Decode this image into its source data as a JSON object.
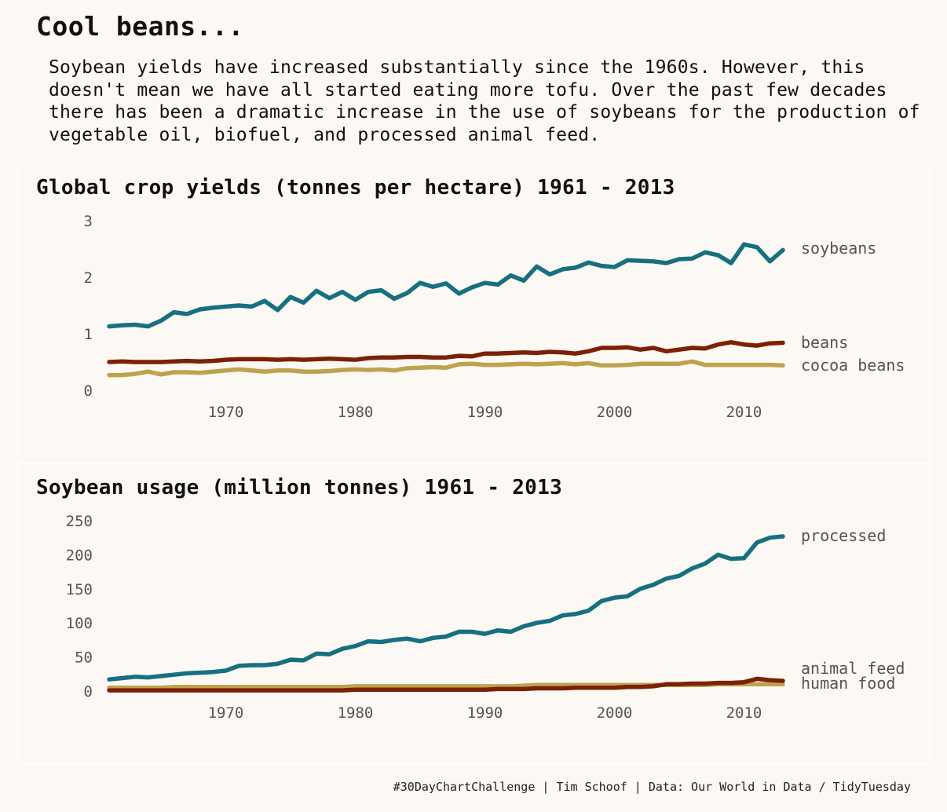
{
  "title": "Cool beans...",
  "subtitle": "Soybean yields have increased substantially since the 1960s. However, this doesn't mean we have all started eating more tofu. Over the past few decades there has been a dramatic increase in the use of soybeans for the production of vegetable oil, biofuel, and processed animal feed.",
  "caption": "#30DayChartChallenge | Tim Schoof | Data: Our World in Data / TidyTuesday",
  "colors": {
    "background": "#fcf8f3",
    "teal": "#16707f",
    "brown": "#7a2106",
    "gold": "#bea34c",
    "axis_text": "#555555"
  },
  "chart_data": [
    {
      "type": "line",
      "title": "Global crop yields (tonnes per hectare) 1961 - 2013",
      "xlabel": "",
      "ylabel": "",
      "xlim": [
        1961,
        2013
      ],
      "ylim": [
        0,
        3
      ],
      "x_ticks": [
        1970,
        1980,
        1990,
        2000,
        2010
      ],
      "y_ticks": [
        0,
        1,
        2,
        3
      ],
      "grid": false,
      "legend": "direct labels at right end of lines",
      "x": [
        1961,
        1962,
        1963,
        1964,
        1965,
        1966,
        1967,
        1968,
        1969,
        1970,
        1971,
        1972,
        1973,
        1974,
        1975,
        1976,
        1977,
        1978,
        1979,
        1980,
        1981,
        1982,
        1983,
        1984,
        1985,
        1986,
        1987,
        1988,
        1989,
        1990,
        1991,
        1992,
        1993,
        1994,
        1995,
        1996,
        1997,
        1998,
        1999,
        2000,
        2001,
        2002,
        2003,
        2004,
        2005,
        2006,
        2007,
        2008,
        2009,
        2010,
        2011,
        2012,
        2013
      ],
      "series": [
        {
          "name": "soybeans",
          "color": "#16707f",
          "values": [
            1.13,
            1.15,
            1.16,
            1.13,
            1.23,
            1.38,
            1.35,
            1.43,
            1.46,
            1.48,
            1.5,
            1.48,
            1.58,
            1.42,
            1.65,
            1.55,
            1.76,
            1.63,
            1.74,
            1.6,
            1.74,
            1.77,
            1.62,
            1.72,
            1.9,
            1.83,
            1.89,
            1.71,
            1.82,
            1.9,
            1.87,
            2.03,
            1.94,
            2.19,
            2.05,
            2.14,
            2.17,
            2.26,
            2.2,
            2.18,
            2.3,
            2.29,
            2.28,
            2.25,
            2.32,
            2.33,
            2.44,
            2.39,
            2.25,
            2.58,
            2.53,
            2.28,
            2.48
          ]
        },
        {
          "name": "beans",
          "color": "#7a2106",
          "values": [
            0.5,
            0.51,
            0.5,
            0.5,
            0.5,
            0.51,
            0.52,
            0.51,
            0.52,
            0.54,
            0.55,
            0.55,
            0.55,
            0.54,
            0.55,
            0.54,
            0.55,
            0.56,
            0.55,
            0.54,
            0.57,
            0.58,
            0.58,
            0.59,
            0.59,
            0.58,
            0.58,
            0.61,
            0.6,
            0.65,
            0.65,
            0.66,
            0.67,
            0.66,
            0.68,
            0.67,
            0.65,
            0.69,
            0.75,
            0.75,
            0.76,
            0.72,
            0.75,
            0.69,
            0.72,
            0.75,
            0.74,
            0.81,
            0.85,
            0.81,
            0.79,
            0.83,
            0.84
          ]
        },
        {
          "name": "cocoa beans",
          "color": "#bea34c",
          "values": [
            0.27,
            0.27,
            0.29,
            0.33,
            0.28,
            0.32,
            0.32,
            0.31,
            0.33,
            0.35,
            0.37,
            0.35,
            0.33,
            0.35,
            0.35,
            0.33,
            0.33,
            0.34,
            0.36,
            0.37,
            0.36,
            0.37,
            0.35,
            0.39,
            0.4,
            0.41,
            0.4,
            0.46,
            0.47,
            0.45,
            0.45,
            0.46,
            0.47,
            0.46,
            0.47,
            0.48,
            0.46,
            0.48,
            0.44,
            0.44,
            0.45,
            0.47,
            0.47,
            0.47,
            0.47,
            0.51,
            0.45,
            0.45,
            0.45,
            0.45,
            0.45,
            0.45,
            0.44
          ]
        }
      ]
    },
    {
      "type": "line",
      "title": "Soybean usage (million tonnes) 1961 - 2013",
      "xlabel": "",
      "ylabel": "",
      "xlim": [
        1961,
        2013
      ],
      "ylim": [
        0,
        250
      ],
      "x_ticks": [
        1970,
        1980,
        1990,
        2000,
        2010
      ],
      "y_ticks": [
        0,
        50,
        100,
        150,
        200,
        250
      ],
      "grid": false,
      "legend": "direct labels at right end of lines",
      "x": [
        1961,
        1962,
        1963,
        1964,
        1965,
        1966,
        1967,
        1968,
        1969,
        1970,
        1971,
        1972,
        1973,
        1974,
        1975,
        1976,
        1977,
        1978,
        1979,
        1980,
        1981,
        1982,
        1983,
        1984,
        1985,
        1986,
        1987,
        1988,
        1989,
        1990,
        1991,
        1992,
        1993,
        1994,
        1995,
        1996,
        1997,
        1998,
        1999,
        2000,
        2001,
        2002,
        2003,
        2004,
        2005,
        2006,
        2007,
        2008,
        2009,
        2010,
        2011,
        2012,
        2013
      ],
      "series": [
        {
          "name": "processed",
          "color": "#16707f",
          "values": [
            17,
            19,
            21,
            20,
            22,
            24,
            26,
            27,
            28,
            30,
            37,
            38,
            38,
            40,
            46,
            45,
            55,
            54,
            62,
            66,
            73,
            72,
            75,
            77,
            73,
            78,
            80,
            87,
            87,
            84,
            89,
            87,
            95,
            100,
            103,
            111,
            113,
            118,
            132,
            137,
            139,
            150,
            156,
            165,
            169,
            180,
            187,
            200,
            194,
            195,
            218,
            225,
            227
          ]
        },
        {
          "name": "animal feed",
          "color": "#7a2106",
          "values": [
            1,
            1,
            1,
            1,
            1,
            1,
            1,
            1,
            1,
            1,
            1,
            1,
            1,
            1,
            1,
            1,
            1,
            1,
            1,
            2,
            2,
            2,
            2,
            2,
            2,
            2,
            2,
            2,
            2,
            2,
            3,
            3,
            3,
            4,
            4,
            4,
            5,
            5,
            5,
            5,
            6,
            6,
            7,
            10,
            10,
            11,
            11,
            12,
            12,
            13,
            18,
            16,
            15
          ]
        },
        {
          "name": "human food",
          "color": "#bea34c",
          "values": [
            5,
            5,
            5,
            5,
            5,
            6,
            6,
            6,
            6,
            6,
            6,
            6,
            6,
            6,
            6,
            6,
            6,
            6,
            6,
            7,
            7,
            7,
            7,
            7,
            7,
            7,
            7,
            7,
            7,
            7,
            7,
            7,
            8,
            9,
            9,
            9,
            9,
            9,
            9,
            9,
            9,
            9,
            9,
            9,
            9,
            9,
            9,
            10,
            10,
            10,
            10,
            10,
            10
          ]
        }
      ]
    }
  ]
}
